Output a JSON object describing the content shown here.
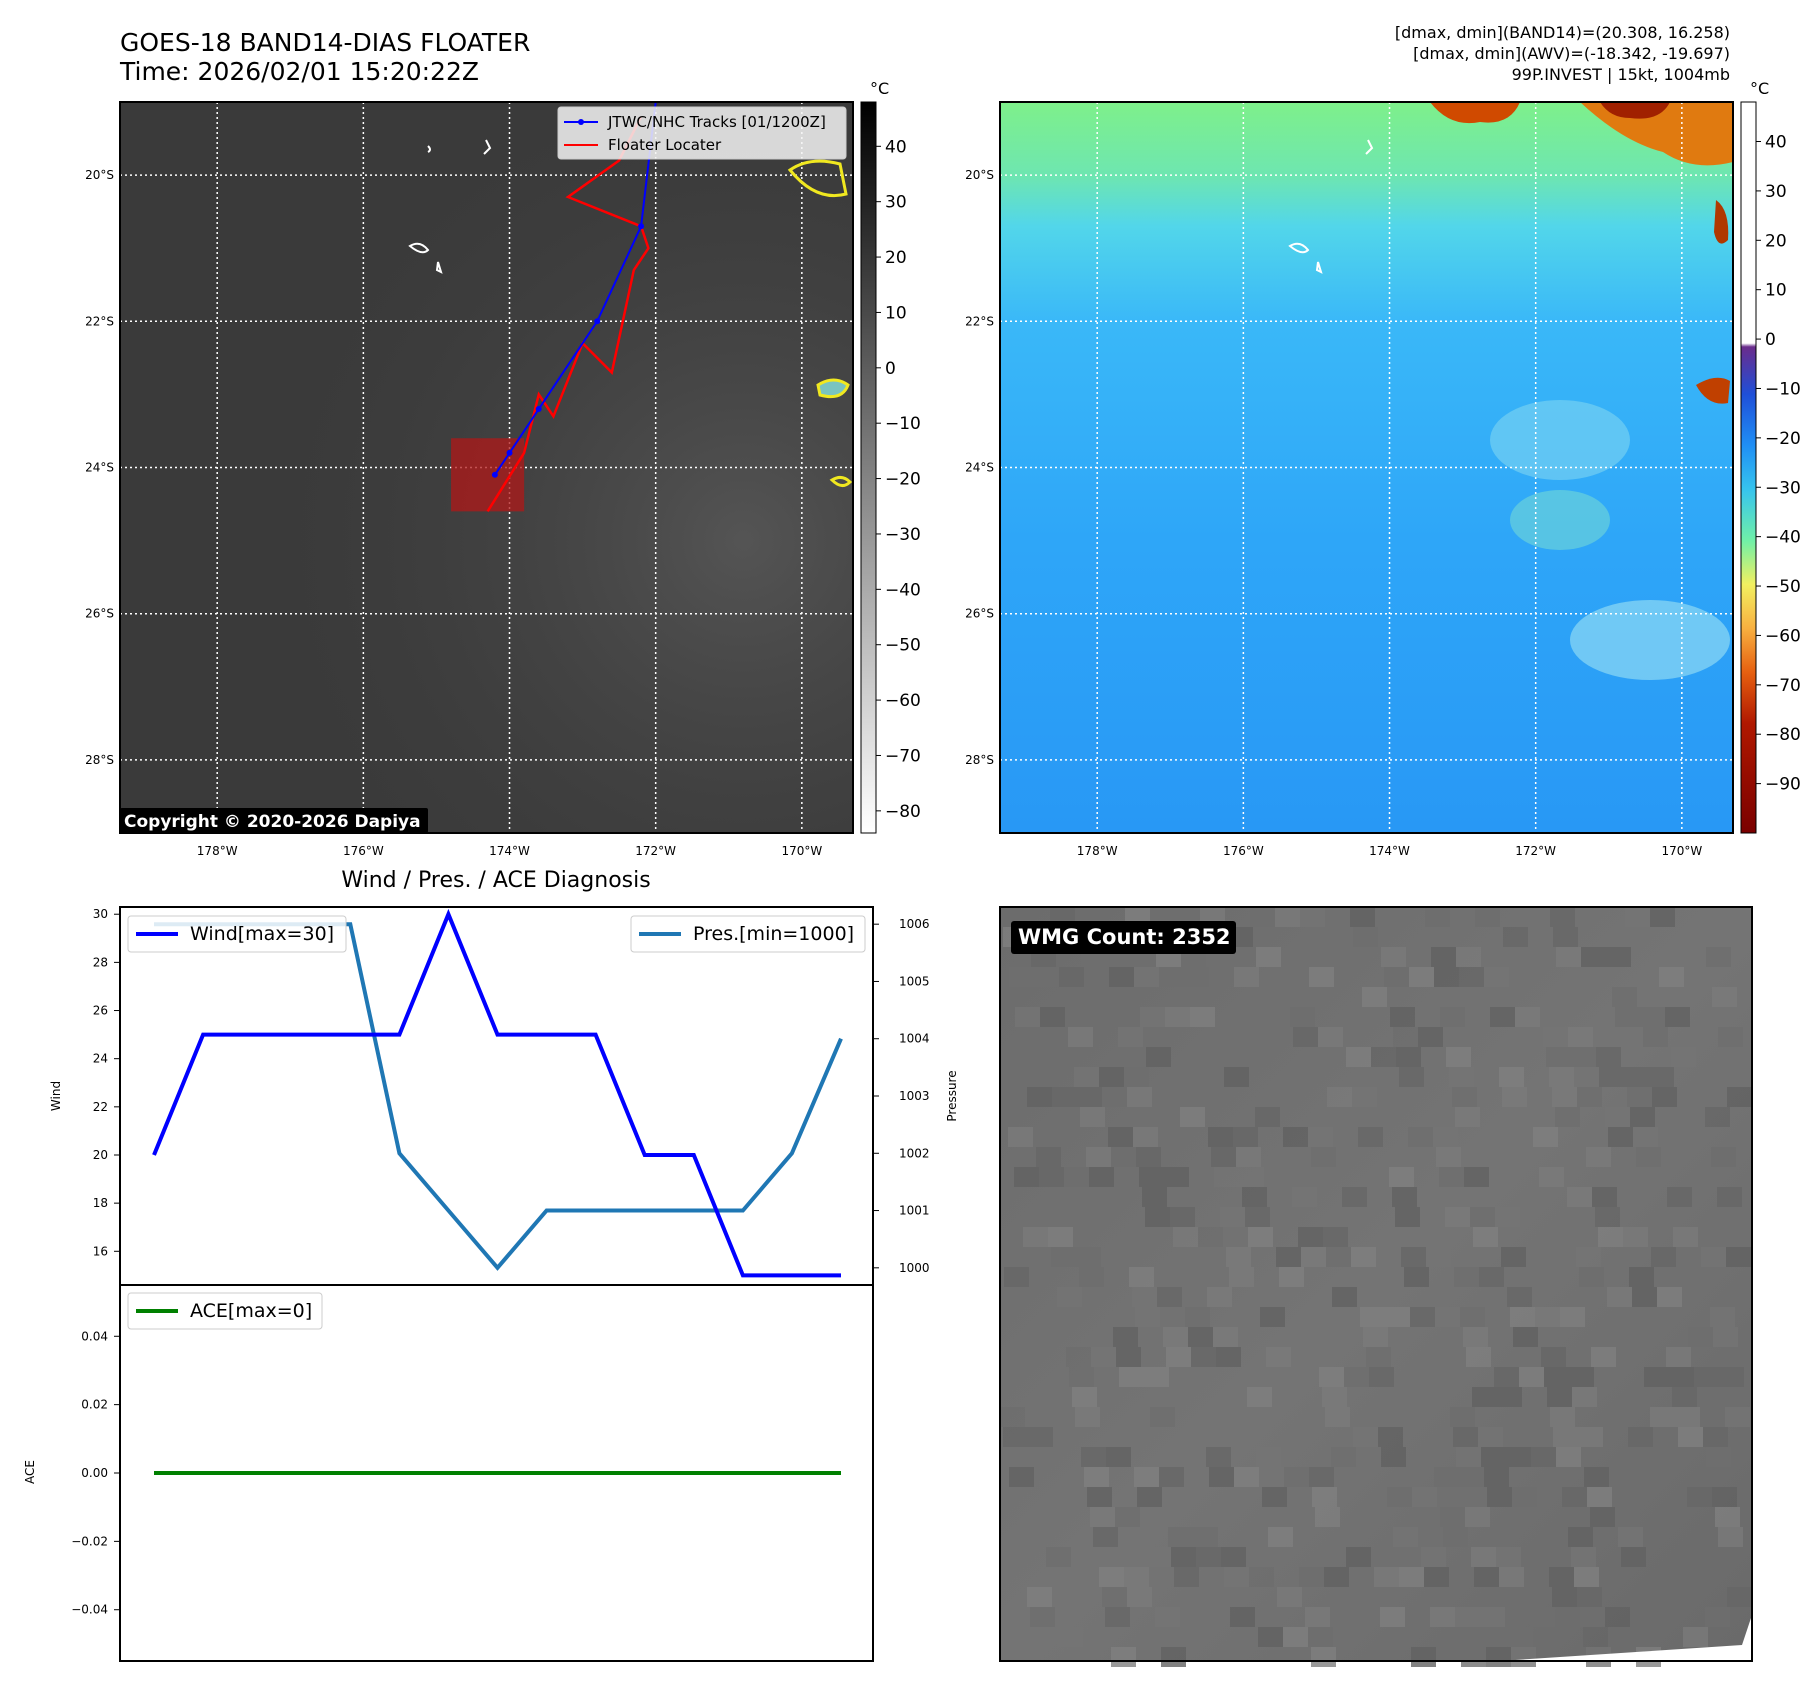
{
  "header": {
    "title": "GOES-18 BAND14-DIAS FLOATER",
    "time": "Time: 2026/02/01 15:20:22Z",
    "info_line1": "[dmax, dmin](BAND14)=(20.308, 16.258)",
    "info_line2": "[dmax, dmin](AWV)=(-18.342, -19.697)",
    "info_line3": "99P.INVEST | 15kt, 1004mb"
  },
  "colors": {
    "track_blue": "#0000ff",
    "floater_red": "#ff0000",
    "pressure_line": "#1f77b4",
    "ace_line": "#008000",
    "ir_background": "#3a3a3a",
    "wv_background": "#3aa8f5",
    "wmg_background": "#6a6a6a"
  },
  "chart_data": [
    {
      "type": "map",
      "id": "ir-map",
      "image": "GOES-18 infrared imagery (gray scale)",
      "colorbar": {
        "unit": "°C",
        "ticks": [
          40,
          30,
          20,
          10,
          0,
          -10,
          -20,
          -30,
          -40,
          -50,
          -60,
          -70,
          -80
        ]
      },
      "lat_ticks": [
        "20°S",
        "22°S",
        "24°S",
        "26°S",
        "28°S"
      ],
      "lat_values": [
        -20,
        -22,
        -24,
        -26,
        -28
      ],
      "lon_ticks": [
        "178°W",
        "176°W",
        "174°W",
        "172°W",
        "170°W"
      ],
      "lon_values": [
        -178,
        -176,
        -174,
        -172,
        -170
      ],
      "lon_range": [
        -179.33,
        -169.3
      ],
      "lat_range": [
        -29.0,
        -19.0
      ],
      "legend": [
        {
          "name": "JTWC/NHC Tracks [01/1200Z]",
          "color": "#0000ff"
        },
        {
          "name": "Floater Locater",
          "color": "#ff0000"
        }
      ],
      "jtwc_track": [
        {
          "lon": -172.0,
          "lat": -19.0
        },
        {
          "lon": -172.2,
          "lat": -20.7
        },
        {
          "lon": -172.8,
          "lat": -22.0
        },
        {
          "lon": -173.6,
          "lat": -23.2
        },
        {
          "lon": -174.0,
          "lat": -23.8
        },
        {
          "lon": -174.2,
          "lat": -24.1
        }
      ],
      "floater_track": [
        {
          "lon": -172.2,
          "lat": -19.2
        },
        {
          "lon": -172.5,
          "lat": -19.8
        },
        {
          "lon": -173.2,
          "lat": -20.3
        },
        {
          "lon": -172.2,
          "lat": -20.7
        },
        {
          "lon": -172.1,
          "lat": -21.0
        },
        {
          "lon": -172.3,
          "lat": -21.3
        },
        {
          "lon": -172.6,
          "lat": -22.7
        },
        {
          "lon": -173.0,
          "lat": -22.3
        },
        {
          "lon": -173.4,
          "lat": -23.3
        },
        {
          "lon": -173.6,
          "lat": -23.0
        },
        {
          "lon": -173.8,
          "lat": -23.8
        },
        {
          "lon": -174.3,
          "lat": -24.6
        }
      ],
      "floater_box": {
        "lon_min": -174.8,
        "lon_max": -173.8,
        "lat_min": -24.6,
        "lat_max": -23.6
      },
      "copyright": "Copyright © 2020-2026 Dapiya"
    },
    {
      "type": "map",
      "id": "wv-map",
      "image": "GOES-18 water vapor imagery (color scale)",
      "colorbar": {
        "unit": "°C",
        "ticks": [
          40,
          30,
          20,
          10,
          0,
          -10,
          -20,
          -30,
          -40,
          -50,
          -60,
          -70,
          -80,
          -90
        ]
      },
      "lat_ticks": [
        "20°S",
        "22°S",
        "24°S",
        "26°S",
        "28°S"
      ],
      "lat_values": [
        -20,
        -22,
        -24,
        -26,
        -28
      ],
      "lon_ticks": [
        "178°W",
        "176°W",
        "174°W",
        "172°W",
        "170°W"
      ],
      "lon_values": [
        -178,
        -176,
        -174,
        -172,
        -170
      ]
    },
    {
      "type": "line",
      "id": "wind-pressure",
      "title": "Wind / Pres. / ACE Diagnosis",
      "n_points": 15,
      "series": [
        {
          "name": "Wind[max=30]",
          "axis": "left",
          "color": "#0000ff",
          "values": [
            20,
            25,
            25,
            25,
            25,
            25,
            30,
            25,
            25,
            25,
            20,
            20,
            15,
            15,
            15
          ]
        },
        {
          "name": "Pres.[min=1000]",
          "axis": "right",
          "color": "#1f77b4",
          "values": [
            1006,
            1006,
            1006,
            1006,
            1006,
            1002,
            1001,
            1000,
            1001,
            1001,
            1001,
            1001,
            1001,
            1002,
            1004
          ]
        }
      ],
      "ylabel_left": "Wind",
      "ylabel_right": "Pressure",
      "ylim_left": [
        14.6,
        30.3
      ],
      "yticks_left": [
        30,
        28,
        26,
        24,
        22,
        20,
        18,
        16
      ],
      "ylim_right": [
        999.7,
        1006.3
      ],
      "yticks_right": [
        1006,
        1005,
        1004,
        1003,
        1002,
        1001,
        1000
      ]
    },
    {
      "type": "line",
      "id": "ace",
      "series": [
        {
          "name": "ACE[max=0]",
          "color": "#008000",
          "values": [
            0,
            0,
            0,
            0,
            0,
            0,
            0,
            0,
            0,
            0,
            0,
            0,
            0,
            0,
            0
          ]
        }
      ],
      "ylabel": "ACE",
      "ylim": [
        -0.055,
        0.055
      ],
      "yticks": [
        "0.04",
        "0.02",
        "0.00",
        "−0.02",
        "−0.04"
      ],
      "ytick_values": [
        0.04,
        0.02,
        0,
        -0.02,
        -0.04
      ]
    },
    {
      "type": "heatmap",
      "id": "wmg",
      "image": "gray pixelated field",
      "label": "WMG Count: 2352"
    }
  ]
}
